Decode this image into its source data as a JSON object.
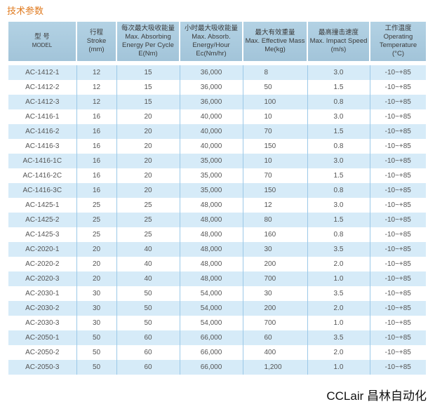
{
  "title": "技术参数",
  "headers": [
    [
      "型 号",
      "MODEL"
    ],
    [
      "行程",
      "Stroke",
      "(mm)"
    ],
    [
      "每次最大吸收能量",
      "Max. Absorbing",
      "Energy Per Cycle",
      "E(Nm)"
    ],
    [
      "小时最大吸收能量",
      "Max. Absorb.",
      "Energy/Hour",
      "Ec(Nm/hr)"
    ],
    [
      "最大有效重量",
      "Max. Effective Mass",
      "Me(kg)"
    ],
    [
      "最高撞击速度",
      "Max. Impact Speed",
      "(m/s)"
    ],
    [
      "工作温度",
      "Operating",
      "Temperature",
      "(°C)"
    ]
  ],
  "rows": [
    [
      "AC-1412-1",
      "12",
      "15",
      "36,000",
      "8",
      "3.0",
      "-10~+85"
    ],
    [
      "AC-1412-2",
      "12",
      "15",
      "36,000",
      "50",
      "1.5",
      "-10~+85"
    ],
    [
      "AC-1412-3",
      "12",
      "15",
      "36,000",
      "100",
      "0.8",
      "-10~+85"
    ],
    [
      "AC-1416-1",
      "16",
      "20",
      "40,000",
      "10",
      "3.0",
      "-10~+85"
    ],
    [
      "AC-1416-2",
      "16",
      "20",
      "40,000",
      "70",
      "1.5",
      "-10~+85"
    ],
    [
      "AC-1416-3",
      "16",
      "20",
      "40,000",
      "150",
      "0.8",
      "-10~+85"
    ],
    [
      "AC-1416-1C",
      "16",
      "20",
      "35,000",
      "10",
      "3.0",
      "-10~+85"
    ],
    [
      "AC-1416-2C",
      "16",
      "20",
      "35,000",
      "70",
      "1.5",
      "-10~+85"
    ],
    [
      "AC-1416-3C",
      "16",
      "20",
      "35,000",
      "150",
      "0.8",
      "-10~+85"
    ],
    [
      "AC-1425-1",
      "25",
      "25",
      "48,000",
      "12",
      "3.0",
      "-10~+85"
    ],
    [
      "AC-1425-2",
      "25",
      "25",
      "48,000",
      "80",
      "1.5",
      "-10~+85"
    ],
    [
      "AC-1425-3",
      "25",
      "25",
      "48,000",
      "160",
      "0.8",
      "-10~+85"
    ],
    [
      "AC-2020-1",
      "20",
      "40",
      "48,000",
      "30",
      "3.5",
      "-10~+85"
    ],
    [
      "AC-2020-2",
      "20",
      "40",
      "48,000",
      "200",
      "2.0",
      "-10~+85"
    ],
    [
      "AC-2020-3",
      "20",
      "40",
      "48,000",
      "700",
      "1.0",
      "-10~+85"
    ],
    [
      "AC-2030-1",
      "30",
      "50",
      "54,000",
      "30",
      "3.5",
      "-10~+85"
    ],
    [
      "AC-2030-2",
      "30",
      "50",
      "54,000",
      "200",
      "2.0",
      "-10~+85"
    ],
    [
      "AC-2030-3",
      "30",
      "50",
      "54,000",
      "700",
      "1.0",
      "-10~+85"
    ],
    [
      "AC-2050-1",
      "50",
      "60",
      "66,000",
      "60",
      "3.5",
      "-10~+85"
    ],
    [
      "AC-2050-2",
      "50",
      "60",
      "66,000",
      "400",
      "2.0",
      "-10~+85"
    ],
    [
      "AC-2050-3",
      "50",
      "60",
      "66,000",
      "1,200",
      "1.0",
      "-10~+85"
    ]
  ],
  "watermark": "CCLAIR",
  "logo": "CCLair 昌林自动化",
  "colors": {
    "title": "#e07b20",
    "header": "#a8c8dc",
    "row_alt": "#d6ebf8"
  }
}
